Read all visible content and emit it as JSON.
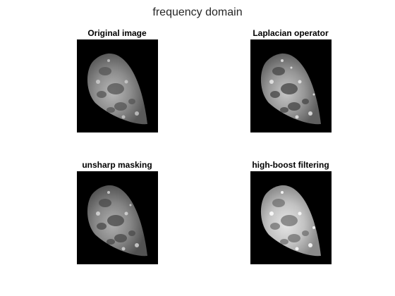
{
  "figure": {
    "title": "frequency domain"
  },
  "subplots": [
    {
      "title": "Original image",
      "image_icon": "moon-image-icon",
      "variant": "original"
    },
    {
      "title": "Laplacian operator",
      "image_icon": "moon-image-icon",
      "variant": "laplacian"
    },
    {
      "title": "unsharp masking",
      "image_icon": "moon-image-icon",
      "variant": "unsharp"
    },
    {
      "title": "high-boost filtering",
      "image_icon": "moon-image-icon",
      "variant": "highboost"
    }
  ],
  "colors": {
    "background": "#ffffff",
    "image_background": "#000000",
    "title_text": "#262626"
  }
}
